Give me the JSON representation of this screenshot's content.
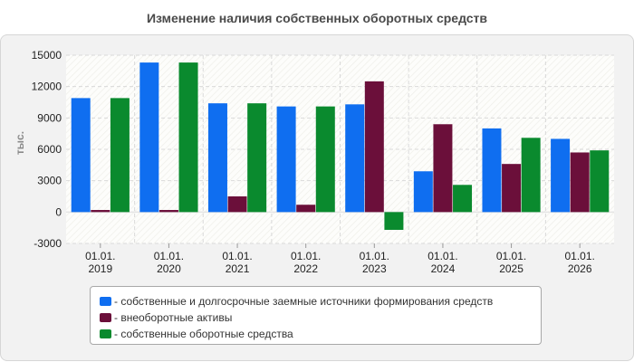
{
  "chart_data": {
    "type": "bar",
    "title": "Изменение наличия собственных оборотных средств",
    "ylabel": "тыс.",
    "ylim": [
      -3000,
      15000
    ],
    "yticks": [
      -3000,
      0,
      3000,
      6000,
      9000,
      12000,
      15000
    ],
    "grid": true,
    "legend_position": "bottom",
    "categories": [
      "01.01.\n2019",
      "01.01.\n2020",
      "01.01.\n2021",
      "01.01.\n2022",
      "01.01.\n2023",
      "01.01.\n2024",
      "01.01.\n2025",
      "01.01.\n2026"
    ],
    "series": [
      {
        "name": "- собственные и долгосрочные заемные источники формирования средств",
        "color": "#0f6ef0",
        "values": [
          10900,
          14300,
          10400,
          10100,
          10300,
          3900,
          8000,
          7000
        ]
      },
      {
        "name": "- внеоборотные активы",
        "color": "#6b0f3a",
        "values": [
          200,
          200,
          1500,
          700,
          12500,
          8400,
          4600,
          5700
        ]
      },
      {
        "name": "- собственные оборотные средства",
        "color": "#0a8a2e",
        "values": [
          10900,
          14300,
          10400,
          10100,
          -1700,
          2600,
          7100,
          5900
        ]
      }
    ]
  }
}
